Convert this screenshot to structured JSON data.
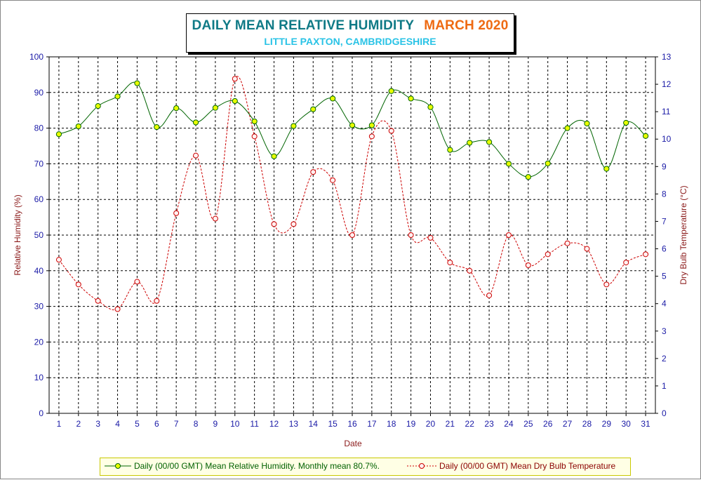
{
  "title": {
    "main": "DAILY MEAN RELATIVE HUMIDITY",
    "month": "MARCH 2020",
    "subtitle": "LITTLE PAXTON, CAMBRIDGESHIRE"
  },
  "legend": {
    "rh": "Daily (00/00 GMT) Mean Relative Humidity. Monthly mean 80.7%.",
    "temp": "Daily (00/00 GMT) Mean Dry Bulb Temperature"
  },
  "colors": {
    "rh_line": "#006400",
    "rh_marker": "#e8ff00",
    "temp_line": "#cc0000",
    "tick_text": "#1a1aa6",
    "axis_label": "#8b1a1a",
    "title_main": "#0f7a86",
    "title_month": "#ee6a12",
    "title_sub": "#29c3e6"
  },
  "chart_data": {
    "type": "line",
    "xlabel": "Date",
    "ylabel_left": "Relative Humidity (%)",
    "ylabel_right": "Dry Bulb Temperature (°C)",
    "ylim_left": [
      0,
      100
    ],
    "ylim_right": [
      0,
      13
    ],
    "yticks_left": [
      0,
      10,
      20,
      30,
      40,
      50,
      60,
      70,
      80,
      90,
      100
    ],
    "yticks_right": [
      0,
      1,
      2,
      3,
      4,
      5,
      6,
      7,
      8,
      9,
      10,
      11,
      12,
      13
    ],
    "grid": true,
    "legend_position": "bottom",
    "x": [
      1,
      2,
      3,
      4,
      5,
      6,
      7,
      8,
      9,
      10,
      11,
      12,
      13,
      14,
      15,
      16,
      17,
      18,
      19,
      20,
      21,
      22,
      23,
      24,
      25,
      26,
      27,
      28,
      29,
      30,
      31
    ],
    "series": [
      {
        "name": "Daily (00/00 GMT) Mean Relative Humidity. Monthly mean 80.7%.",
        "axis": "left",
        "style": "solid",
        "values": [
          78.3,
          80.5,
          86.2,
          88.9,
          92.6,
          80.3,
          85.6,
          81.6,
          85.7,
          87.6,
          81.9,
          72.1,
          80.6,
          85.3,
          88.3,
          80.8,
          80.8,
          90.4,
          88.3,
          85.9,
          73.9,
          75.9,
          76.1,
          70.0,
          66.3,
          70.1,
          80.0,
          81.3,
          68.6,
          81.5,
          77.8
        ]
      },
      {
        "name": "Daily (00/00 GMT) Mean Dry Bulb Temperature",
        "axis": "right",
        "style": "dashed",
        "values": [
          5.6,
          4.7,
          4.1,
          3.8,
          4.8,
          4.1,
          7.3,
          9.4,
          7.1,
          12.2,
          10.1,
          6.9,
          6.9,
          8.8,
          8.5,
          6.5,
          10.1,
          10.3,
          6.5,
          6.4,
          5.5,
          5.2,
          4.3,
          6.5,
          5.4,
          5.8,
          6.2,
          6.0,
          4.7,
          5.5,
          5.8
        ]
      }
    ]
  }
}
